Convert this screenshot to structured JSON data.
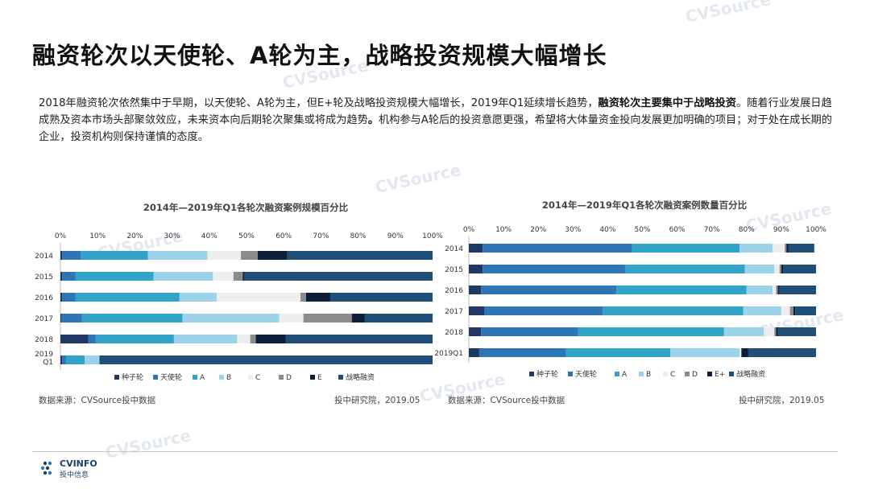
{
  "title": "融资轮次以天使轮、A轮为主，战略投资规模大幅增长",
  "intro": {
    "part1": "2018年融资轮次依然集中于早期，以天使轮、A轮为主，但E+轮及战略投资规模大幅增长，2019年Q1延续增长趋势，",
    "bold1": "融资轮次主要集中于战略投资",
    "part2": "。随着行业发展日趋成熟及资本市场头部聚敛效应，未来资本向后期轮次聚集或将成为趋势",
    "bold2": "。",
    "part3": "机构参与A轮后的投资意愿更强，希望将大体量资金投向发展更加明确的项目；对于处在成长期的企业，投资机构则保持谨慎的态度。"
  },
  "watermark": "CVSource",
  "watermark_sub": "投中数据",
  "logo": {
    "name": "CVINFO",
    "sub": "投中信息"
  },
  "colors": {
    "种子轮": "#1f3864",
    "天使轮": "#2e75b6",
    "A": "#31a3c6",
    "B": "#9dd3ea",
    "C": "#eeeeee",
    "D": "#8c8c8c",
    "E": "#0b1f3a",
    "E+": "#0b1f3a",
    "战略融资": "#1f4e79"
  },
  "chart_data": [
    {
      "type": "bar",
      "orientation": "horizontal",
      "stacked": true,
      "title": "2014年—2019年Q1各轮次融资案例规模百分比",
      "categories": [
        "2014",
        "2015",
        "2016",
        "2017",
        "2018",
        "2019 Q1"
      ],
      "xticks": [
        "0%",
        "10%",
        "20%",
        "30%",
        "40%",
        "50%",
        "60%",
        "70%",
        "80%",
        "90%",
        "100%"
      ],
      "xlim": [
        0,
        100
      ],
      "legend": "bottom",
      "series": [
        {
          "name": "种子轮",
          "values": [
            0.5,
            0.5,
            0.5,
            0.3,
            7.5,
            0.5
          ]
        },
        {
          "name": "天使轮",
          "values": [
            5,
            3.5,
            3.5,
            5.5,
            2,
            1
          ]
        },
        {
          "name": "A",
          "values": [
            18,
            21,
            28,
            27,
            21,
            5
          ]
        },
        {
          "name": "B",
          "values": [
            16,
            16,
            10,
            26,
            17,
            4
          ]
        },
        {
          "name": "C",
          "values": [
            9,
            5.5,
            22.5,
            6.5,
            3.5,
            0
          ]
        },
        {
          "name": "D",
          "values": [
            4.5,
            2.5,
            1.5,
            13,
            1.5,
            0
          ]
        },
        {
          "name": "E",
          "values": [
            8,
            0.5,
            6.5,
            3.5,
            8,
            0
          ]
        },
        {
          "name": "战略融资",
          "values": [
            39,
            50.5,
            27.5,
            18.2,
            39.5,
            89.5
          ]
        }
      ],
      "source": "数据来源：CVSource投中数据",
      "credit": "投中研究院，2019.05"
    },
    {
      "type": "bar",
      "orientation": "horizontal",
      "stacked": true,
      "title": "2014年—2019年Q1各轮次融资案例数量百分比",
      "categories": [
        "2014",
        "2015",
        "2016",
        "2017",
        "2018",
        "2019Q1"
      ],
      "xticks": [
        "0%",
        "10%",
        "20%",
        "30%",
        "40%",
        "50%",
        "60%",
        "70%",
        "80%",
        "90%",
        "100%"
      ],
      "xlim": [
        0,
        100
      ],
      "legend": "bottom",
      "series": [
        {
          "name": "种子轮",
          "values": [
            4,
            4,
            3.5,
            4.5,
            3.5,
            3
          ]
        },
        {
          "name": "天使轮",
          "values": [
            43,
            41,
            39,
            34,
            28,
            25
          ]
        },
        {
          "name": "A",
          "values": [
            31,
            34.5,
            37.5,
            40.5,
            42,
            30
          ]
        },
        {
          "name": "B",
          "values": [
            9.5,
            8.5,
            7.5,
            11,
            11.5,
            20
          ]
        },
        {
          "name": "C",
          "values": [
            3.5,
            1.5,
            1,
            2.5,
            3,
            0.5
          ]
        },
        {
          "name": "D",
          "values": [
            0.5,
            0.5,
            0.5,
            1,
            0.5,
            0
          ]
        },
        {
          "name": "E+",
          "values": [
            0.5,
            0.5,
            0.5,
            0.5,
            0.5,
            2
          ]
        },
        {
          "name": "战略融资",
          "values": [
            7.5,
            9.5,
            10.5,
            6,
            11,
            19.5
          ]
        }
      ],
      "source": "数据来源：CVSource投中数据",
      "credit": "投中研究院，2019.05"
    }
  ]
}
